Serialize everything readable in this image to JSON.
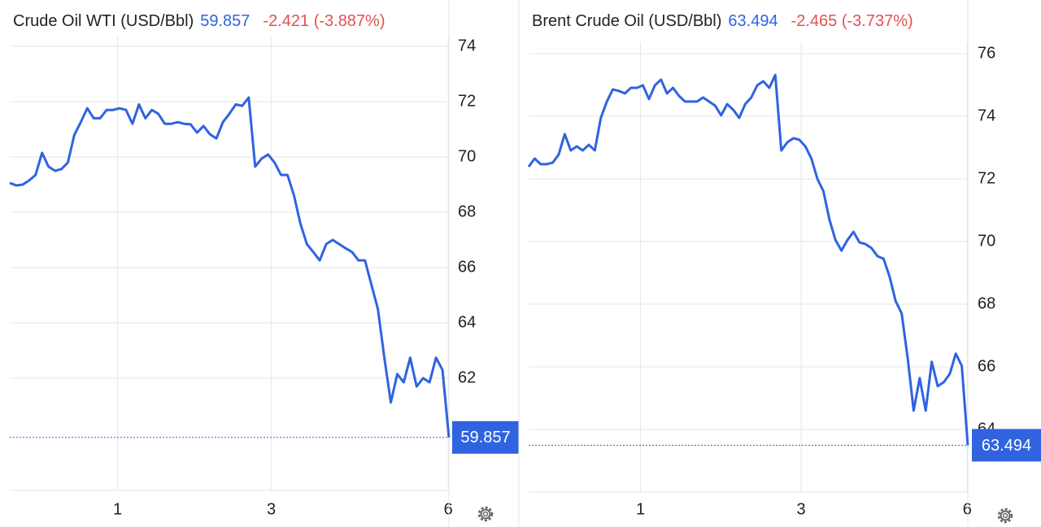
{
  "chart_data": [
    {
      "type": "line",
      "title": "Crude Oil WTI (USD/Bbl)",
      "last": 59.857,
      "change_label": "-2.421 (-3.887%)",
      "color": "#2f63e0",
      "last_color": "#2f63e0",
      "change_color": "#e0524f",
      "xlim": [
        0,
        68
      ],
      "xticks": [
        {
          "value": 16.7,
          "label": "1"
        },
        {
          "value": 40.5,
          "label": "3"
        },
        {
          "value": 67.9,
          "label": "6"
        }
      ],
      "ylim": [
        58,
        74.5
      ],
      "yticks": [
        62,
        64,
        66,
        68,
        70,
        72,
        74
      ],
      "grid": true,
      "values": [
        69.06,
        68.97,
        69.0,
        69.15,
        69.35,
        70.15,
        69.65,
        69.5,
        69.56,
        69.8,
        70.8,
        71.26,
        71.76,
        71.4,
        71.4,
        71.7,
        71.7,
        71.76,
        71.7,
        71.2,
        71.9,
        71.4,
        71.7,
        71.56,
        71.2,
        71.2,
        71.26,
        71.2,
        71.18,
        70.88,
        71.12,
        70.82,
        70.67,
        71.26,
        71.56,
        71.9,
        71.85,
        72.15,
        69.65,
        69.94,
        70.09,
        69.8,
        69.35,
        69.35,
        68.62,
        67.59,
        66.85,
        66.56,
        66.26,
        66.85,
        67.0,
        66.85,
        66.7,
        66.56,
        66.26,
        66.26,
        65.38,
        64.5,
        62.74,
        61.12,
        62.15,
        61.85,
        62.74,
        61.7,
        62.0,
        61.85,
        62.74,
        62.3,
        59.857
      ]
    },
    {
      "type": "line",
      "title": "Brent Crude Oil (USD/Bbl)",
      "last": 63.494,
      "change_label": "-2.465 (-3.737%)",
      "color": "#2f63e0",
      "last_color": "#2f63e0",
      "change_color": "#e0524f",
      "xlim": [
        0,
        73
      ],
      "xticks": [
        {
          "value": 18.6,
          "label": "1"
        },
        {
          "value": 45.3,
          "label": "3"
        },
        {
          "value": 72.9,
          "label": "6"
        }
      ],
      "ylim": [
        62,
        76.5
      ],
      "yticks": [
        64,
        66,
        68,
        70,
        72,
        74,
        76
      ],
      "grid": true,
      "values": [
        72.39,
        72.65,
        72.47,
        72.47,
        72.52,
        72.78,
        73.43,
        72.91,
        73.04,
        72.91,
        73.09,
        72.91,
        73.95,
        74.47,
        74.86,
        74.81,
        74.73,
        74.91,
        74.91,
        74.99,
        74.55,
        74.99,
        75.17,
        74.73,
        74.91,
        74.65,
        74.47,
        74.47,
        74.47,
        74.6,
        74.47,
        74.34,
        74.03,
        74.39,
        74.21,
        73.95,
        74.39,
        74.6,
        74.99,
        75.12,
        74.91,
        75.32,
        72.91,
        73.17,
        73.3,
        73.25,
        73.04,
        72.65,
        72.0,
        71.61,
        70.7,
        70.05,
        69.71,
        70.05,
        70.31,
        69.97,
        69.92,
        69.79,
        69.53,
        69.45,
        68.88,
        68.1,
        67.71,
        66.29,
        64.6,
        65.64,
        64.6,
        66.16,
        65.38,
        65.51,
        65.77,
        66.42,
        66.03,
        63.494
      ]
    }
  ]
}
